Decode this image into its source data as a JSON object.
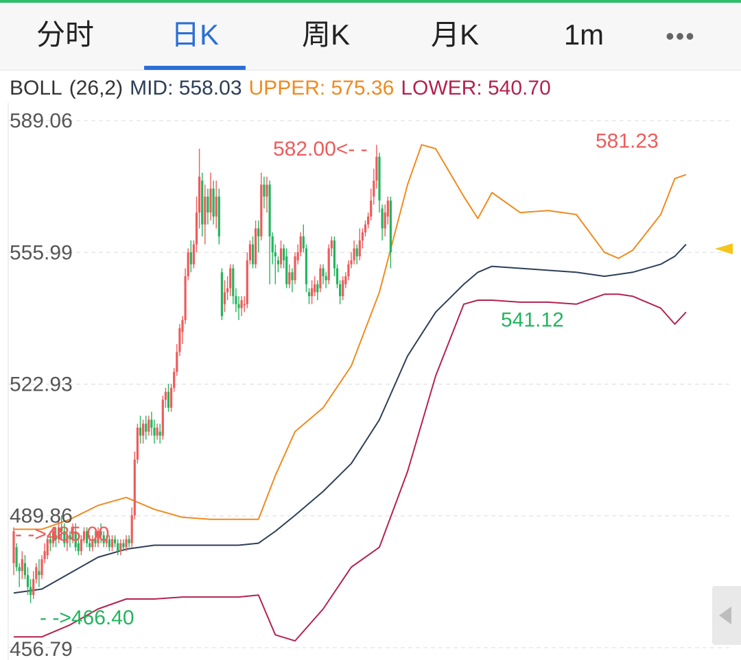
{
  "tabs": [
    {
      "label": "分时"
    },
    {
      "label": "日K"
    },
    {
      "label": "周K"
    },
    {
      "label": "月K"
    },
    {
      "label": "1m"
    }
  ],
  "active_tab": "日K",
  "more_icon": "more-dots-icon",
  "legend": {
    "name": "BOLL",
    "params": "(26,2)",
    "mid": "MID: 558.03",
    "upper": "UPPER: 575.36",
    "lower": "LOWER: 540.70"
  },
  "colors": {
    "up": "#ee5b5b",
    "down": "#22b55e",
    "mid": "#2c3e57",
    "upper": "#f08a1e",
    "lower": "#b3224f",
    "active_tab": "#2b6fd6",
    "marker": "#f5c518"
  },
  "chart_data": {
    "type": "candlestick",
    "indicator": "BOLL",
    "y_ticks": [
      "589.06",
      "555.99",
      "522.93",
      "489.86",
      "456.79"
    ],
    "y_range": [
      456.79,
      589.06
    ],
    "grid": true,
    "annotations": [
      {
        "text": "582.00<- -",
        "value": 582.0
      },
      {
        "text": "581.23",
        "value": 581.23
      },
      {
        "text": "541.12",
        "value": 541.12
      },
      {
        "text": "- ->485.00",
        "value": 485.0
      },
      {
        "text": "- ->466.40",
        "value": 466.4
      }
    ],
    "candles": [
      [
        478,
        486,
        475,
        487
      ],
      [
        482,
        477,
        476,
        483
      ],
      [
        477,
        476,
        472,
        478
      ],
      [
        476,
        479,
        474,
        481
      ],
      [
        478,
        475,
        474,
        480
      ],
      [
        475,
        472,
        470,
        477
      ],
      [
        472,
        470,
        468,
        474
      ],
      [
        470,
        474,
        469,
        476
      ],
      [
        474,
        477,
        473,
        478
      ],
      [
        476,
        475,
        472,
        479
      ],
      [
        475,
        479,
        474,
        480
      ],
      [
        479,
        481,
        478,
        483
      ],
      [
        480,
        484,
        479,
        485
      ],
      [
        484,
        483,
        481,
        486
      ],
      [
        483,
        486,
        482,
        487
      ],
      [
        485,
        484,
        482,
        487
      ],
      [
        484,
        487,
        483,
        489
      ],
      [
        487,
        486,
        484,
        490
      ],
      [
        486,
        483,
        482,
        488
      ],
      [
        483,
        485,
        481,
        486
      ],
      [
        485,
        484,
        482,
        486
      ],
      [
        484,
        487,
        483,
        488
      ],
      [
        486,
        482,
        481,
        488
      ],
      [
        483,
        481,
        480,
        485
      ],
      [
        481,
        484,
        480,
        485
      ],
      [
        484,
        486,
        483,
        487
      ],
      [
        486,
        483,
        482,
        487
      ],
      [
        483,
        482,
        481,
        485
      ],
      [
        482,
        484,
        481,
        485
      ],
      [
        484,
        483,
        482,
        486
      ],
      [
        483,
        486,
        482,
        487
      ],
      [
        486,
        485,
        483,
        488
      ],
      [
        485,
        483,
        482,
        486
      ],
      [
        483,
        484,
        482,
        485
      ],
      [
        484,
        482,
        481,
        485
      ],
      [
        482,
        484,
        481,
        485
      ],
      [
        484,
        483,
        482,
        485
      ],
      [
        483,
        481,
        480,
        484
      ],
      [
        481,
        483,
        480,
        484
      ],
      [
        483,
        482,
        481,
        484
      ],
      [
        482,
        484,
        481,
        485
      ],
      [
        484,
        483,
        482,
        485
      ],
      [
        483,
        490,
        482,
        492
      ],
      [
        490,
        504,
        489,
        506
      ],
      [
        504,
        512,
        503,
        513
      ],
      [
        512,
        510,
        508,
        515
      ],
      [
        510,
        513,
        508,
        514
      ],
      [
        513,
        511,
        509,
        515
      ],
      [
        511,
        514,
        510,
        515
      ],
      [
        514,
        512,
        510,
        516
      ],
      [
        512,
        510,
        508,
        514
      ],
      [
        510,
        512,
        509,
        513
      ],
      [
        511,
        510,
        508,
        513
      ],
      [
        510,
        519,
        509,
        520
      ],
      [
        519,
        521,
        517,
        522
      ],
      [
        521,
        517,
        516,
        523
      ],
      [
        517,
        522,
        516,
        523
      ],
      [
        522,
        526,
        521,
        527
      ],
      [
        526,
        531,
        525,
        533
      ],
      [
        531,
        537,
        530,
        538
      ],
      [
        536,
        539,
        533,
        540
      ],
      [
        539,
        550,
        538,
        552
      ],
      [
        550,
        556,
        549,
        557
      ],
      [
        556,
        553,
        551,
        559
      ],
      [
        553,
        558,
        552,
        559
      ],
      [
        558,
        566,
        556,
        570
      ],
      [
        566,
        575,
        562,
        582
      ],
      [
        574,
        563,
        560,
        576
      ],
      [
        563,
        570,
        558,
        573
      ],
      [
        570,
        566,
        563,
        572
      ],
      [
        566,
        572,
        564,
        576
      ],
      [
        572,
        565,
        563,
        574
      ],
      [
        565,
        570,
        562,
        574
      ],
      [
        570,
        560,
        558,
        572
      ],
      [
        551,
        540,
        539,
        552
      ],
      [
        543,
        546,
        541,
        549
      ],
      [
        546,
        547,
        544,
        550
      ],
      [
        547,
        552,
        545,
        553
      ],
      [
        552,
        545,
        543,
        553
      ],
      [
        545,
        543,
        541,
        547
      ],
      [
        543,
        542,
        539,
        545
      ],
      [
        542,
        544,
        540,
        545
      ],
      [
        543,
        543,
        541,
        545
      ],
      [
        543,
        554,
        542,
        556
      ],
      [
        554,
        558,
        553,
        559
      ],
      [
        558,
        553,
        552,
        560
      ],
      [
        553,
        562,
        552,
        564
      ],
      [
        562,
        560,
        556,
        564
      ],
      [
        560,
        573,
        559,
        576
      ],
      [
        573,
        570,
        567,
        575
      ],
      [
        570,
        573,
        566,
        575
      ],
      [
        573,
        560,
        548,
        574
      ],
      [
        560,
        556,
        553,
        561
      ],
      [
        556,
        555,
        548,
        558
      ],
      [
        554,
        553,
        551,
        555
      ],
      [
        553,
        557,
        552,
        559
      ],
      [
        557,
        554,
        552,
        558
      ],
      [
        555,
        548,
        547,
        557
      ],
      [
        548,
        551,
        547,
        553
      ],
      [
        551,
        549,
        546,
        552
      ],
      [
        549,
        555,
        548,
        556
      ],
      [
        554,
        556,
        553,
        558
      ],
      [
        556,
        560,
        555,
        561
      ],
      [
        560,
        557,
        556,
        563
      ],
      [
        557,
        548,
        546,
        558
      ],
      [
        546,
        545,
        543,
        547
      ],
      [
        545,
        547,
        543,
        549
      ],
      [
        546,
        548,
        545,
        550
      ],
      [
        548,
        546,
        544,
        549
      ],
      [
        547,
        552,
        546,
        553
      ],
      [
        552,
        550,
        548,
        553
      ],
      [
        550,
        549,
        547,
        551
      ],
      [
        549,
        557,
        548,
        558
      ],
      [
        557,
        559,
        555,
        560
      ],
      [
        559,
        552,
        550,
        560
      ],
      [
        552,
        548,
        547,
        553
      ],
      [
        548,
        545,
        543,
        549
      ],
      [
        545,
        549,
        544,
        550
      ],
      [
        548,
        550,
        547,
        551
      ],
      [
        550,
        553,
        549,
        554
      ],
      [
        553,
        554,
        552,
        556
      ],
      [
        554,
        557,
        553,
        559
      ],
      [
        557,
        555,
        553,
        558
      ],
      [
        555,
        559,
        554,
        562
      ],
      [
        559,
        561,
        557,
        562
      ],
      [
        561,
        563,
        560,
        564
      ],
      [
        563,
        565,
        562,
        566
      ],
      [
        565,
        569,
        564,
        572
      ],
      [
        570,
        574,
        568,
        577
      ],
      [
        574,
        580,
        572,
        583
      ],
      [
        580,
        569,
        566,
        581
      ],
      [
        567,
        562,
        559,
        568
      ],
      [
        562,
        566,
        560,
        568
      ],
      [
        565,
        569,
        563,
        570
      ],
      [
        569,
        556,
        552,
        570
      ]
    ],
    "boll_mid": [
      [
        0,
        470.5
      ],
      [
        10,
        471.5
      ],
      [
        20,
        475.5
      ],
      [
        30,
        479.5
      ],
      [
        40,
        481.5
      ],
      [
        50,
        482.5
      ],
      [
        60,
        482.5
      ],
      [
        70,
        482.5
      ],
      [
        80,
        482.5
      ],
      [
        87,
        483.0
      ],
      [
        93,
        486.0
      ],
      [
        100,
        490.0
      ],
      [
        110,
        496.0
      ],
      [
        120,
        503.0
      ],
      [
        130,
        514.0
      ],
      [
        140,
        530.0
      ],
      [
        150,
        541.0
      ],
      [
        160,
        548.0
      ],
      [
        165,
        551.0
      ],
      [
        170,
        552.5
      ],
      [
        180,
        552.0
      ],
      [
        190,
        551.5
      ],
      [
        200,
        551.0
      ],
      [
        210,
        550.0
      ],
      [
        215,
        550.5
      ],
      [
        220,
        551.0
      ],
      [
        230,
        553.0
      ],
      [
        235,
        555.0
      ],
      [
        239,
        558.0
      ]
    ],
    "boll_upper": [
      [
        0,
        486.5
      ],
      [
        10,
        486.5
      ],
      [
        20,
        489.0
      ],
      [
        30,
        492.5
      ],
      [
        40,
        494.5
      ],
      [
        50,
        491.5
      ],
      [
        60,
        489.5
      ],
      [
        70,
        489.0
      ],
      [
        80,
        489.0
      ],
      [
        87,
        489.0
      ],
      [
        93,
        500.0
      ],
      [
        100,
        511.0
      ],
      [
        110,
        517.0
      ],
      [
        120,
        527.5
      ],
      [
        130,
        546.0
      ],
      [
        140,
        573.0
      ],
      [
        145,
        583.0
      ],
      [
        150,
        582.0
      ],
      [
        160,
        570.0
      ],
      [
        165,
        564.5
      ],
      [
        170,
        571.0
      ],
      [
        180,
        566.0
      ],
      [
        190,
        566.5
      ],
      [
        200,
        565.5
      ],
      [
        210,
        556.0
      ],
      [
        215,
        554.5
      ],
      [
        220,
        556.5
      ],
      [
        230,
        565.5
      ],
      [
        235,
        574.5
      ],
      [
        239,
        575.5
      ]
    ],
    "boll_lower": [
      [
        0,
        459.5
      ],
      [
        10,
        459.5
      ],
      [
        20,
        462.5
      ],
      [
        30,
        466.5
      ],
      [
        40,
        469.0
      ],
      [
        50,
        469.0
      ],
      [
        60,
        469.5
      ],
      [
        70,
        469.5
      ],
      [
        80,
        469.5
      ],
      [
        87,
        470.0
      ],
      [
        93,
        460.0
      ],
      [
        100,
        458.5
      ],
      [
        110,
        466.5
      ],
      [
        120,
        477.0
      ],
      [
        130,
        482.0
      ],
      [
        140,
        501.0
      ],
      [
        150,
        525.0
      ],
      [
        160,
        543.0
      ],
      [
        165,
        544.0
      ],
      [
        170,
        544.0
      ],
      [
        180,
        543.5
      ],
      [
        190,
        543.5
      ],
      [
        200,
        543.0
      ],
      [
        210,
        545.5
      ],
      [
        215,
        545.5
      ],
      [
        220,
        545.0
      ],
      [
        230,
        542.0
      ],
      [
        235,
        538.0
      ],
      [
        239,
        541.0
      ]
    ]
  }
}
